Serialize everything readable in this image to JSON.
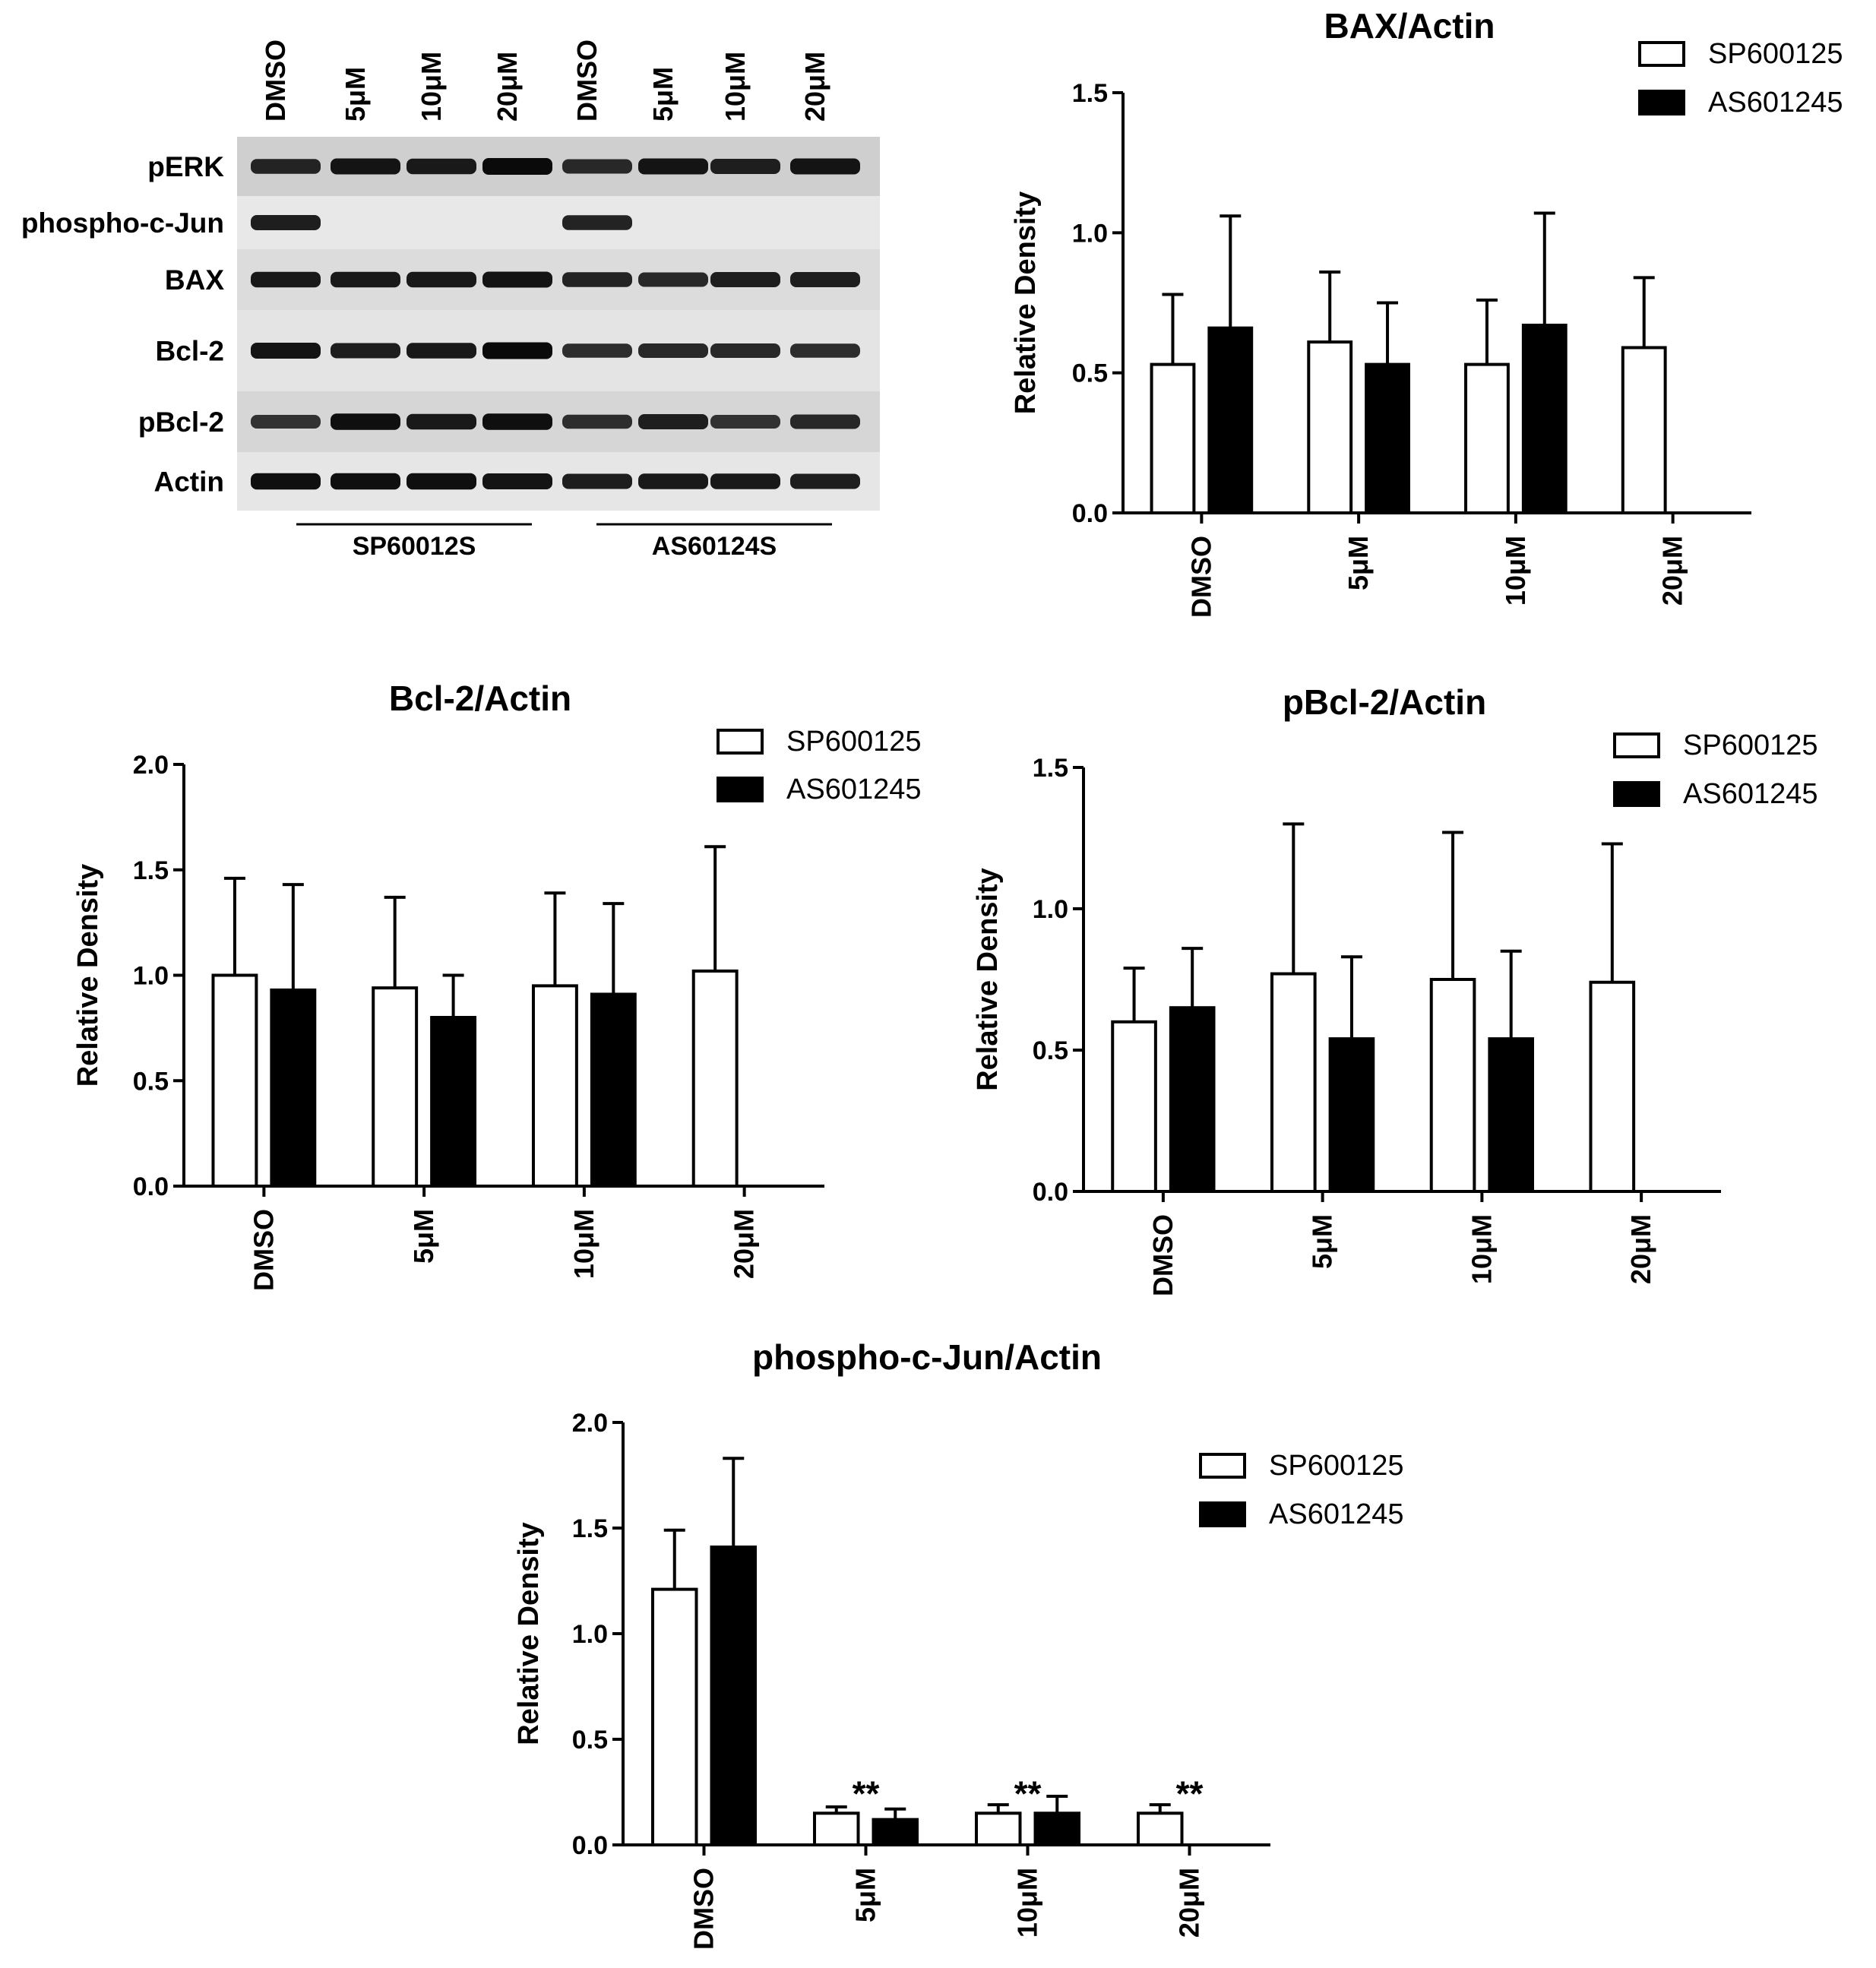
{
  "blot": {
    "lane_labels": [
      "DMSO",
      "5μM",
      "10μM",
      "20μM",
      "DMSO",
      "5μM",
      "10μM",
      "20μM"
    ],
    "row_labels": [
      "pERK",
      "phospho-c-Jun",
      "BAX",
      "Bcl-2",
      "pBcl-2",
      "Actin"
    ],
    "group_labels": [
      "SP60012S",
      "AS60124S"
    ],
    "band_intensity": [
      [
        0.75,
        0.9,
        0.85,
        1.0,
        0.7,
        0.9,
        0.8,
        0.9
      ],
      [
        0.8,
        0,
        0,
        0,
        0.75,
        0,
        0,
        0
      ],
      [
        0.85,
        0.85,
        0.85,
        0.9,
        0.75,
        0.7,
        0.8,
        0.8
      ],
      [
        0.9,
        0.8,
        0.85,
        1.0,
        0.65,
        0.7,
        0.7,
        0.65
      ],
      [
        0.6,
        0.95,
        0.85,
        0.95,
        0.65,
        0.8,
        0.6,
        0.7
      ],
      [
        0.95,
        0.95,
        0.95,
        0.9,
        0.8,
        0.85,
        0.85,
        0.8
      ]
    ]
  },
  "chart_data": [
    {
      "type": "bar",
      "title": "BAX/Actin",
      "ylabel": "Relative Density",
      "xlabel": "",
      "categories": [
        "DMSO",
        "5μM",
        "10μM",
        "20μM"
      ],
      "ylim": [
        0,
        1.5
      ],
      "yticks": [
        "0.0",
        "0.5",
        "1.0",
        "1.5"
      ],
      "legend": "top-right",
      "series": [
        {
          "name": "SP600125",
          "fill": "white",
          "values": [
            0.53,
            0.61,
            0.53,
            0.59
          ],
          "error": [
            0.25,
            0.25,
            0.23,
            0.25
          ]
        },
        {
          "name": "AS601245",
          "fill": "black",
          "values": [
            0.66,
            0.53,
            0.67,
            null
          ],
          "error": [
            0.4,
            0.22,
            0.4,
            null
          ]
        }
      ],
      "annotations": []
    },
    {
      "type": "bar",
      "title": "Bcl-2/Actin",
      "ylabel": "Relative Density",
      "xlabel": "",
      "categories": [
        "DMSO",
        "5μM",
        "10μM",
        "20μM"
      ],
      "ylim": [
        0,
        2.0
      ],
      "yticks": [
        "0.0",
        "0.5",
        "1.0",
        "1.5",
        "2.0"
      ],
      "legend": "top-right",
      "series": [
        {
          "name": "SP600125",
          "fill": "white",
          "values": [
            1.0,
            0.94,
            0.95,
            1.02
          ],
          "error": [
            0.46,
            0.43,
            0.44,
            0.59
          ]
        },
        {
          "name": "AS601245",
          "fill": "black",
          "values": [
            0.93,
            0.8,
            0.91,
            null
          ],
          "error": [
            0.5,
            0.2,
            0.43,
            null
          ]
        }
      ],
      "annotations": []
    },
    {
      "type": "bar",
      "title": "pBcl-2/Actin",
      "ylabel": "Relative Density",
      "xlabel": "",
      "categories": [
        "DMSO",
        "5μM",
        "10μM",
        "20μM"
      ],
      "ylim": [
        0,
        1.5
      ],
      "yticks": [
        "0.0",
        "0.5",
        "1.0",
        "1.5"
      ],
      "legend": "top-right",
      "series": [
        {
          "name": "SP600125",
          "fill": "white",
          "values": [
            0.6,
            0.77,
            0.75,
            0.74
          ],
          "error": [
            0.19,
            0.53,
            0.52,
            0.49
          ]
        },
        {
          "name": "AS601245",
          "fill": "black",
          "values": [
            0.65,
            0.54,
            0.54,
            null
          ],
          "error": [
            0.21,
            0.29,
            0.31,
            null
          ]
        }
      ],
      "annotations": []
    },
    {
      "type": "bar",
      "title": "phospho-c-Jun/Actin",
      "ylabel": "Relative Density",
      "xlabel": "",
      "categories": [
        "DMSO",
        "5μM",
        "10μM",
        "20μM"
      ],
      "ylim": [
        0,
        2.0
      ],
      "yticks": [
        "0.0",
        "0.5",
        "1.0",
        "1.5",
        "2.0"
      ],
      "legend": "top-right",
      "series": [
        {
          "name": "SP600125",
          "fill": "white",
          "values": [
            1.21,
            0.15,
            0.15,
            0.15
          ],
          "error": [
            0.28,
            0.03,
            0.04,
            0.04
          ]
        },
        {
          "name": "AS601245",
          "fill": "black",
          "values": [
            1.41,
            0.12,
            0.15,
            null
          ],
          "error": [
            0.42,
            0.05,
            0.08,
            null
          ]
        }
      ],
      "annotations": [
        {
          "category": "5μM",
          "text": "**"
        },
        {
          "category": "10μM",
          "text": "**"
        },
        {
          "category": "20μM",
          "text": "**"
        }
      ]
    }
  ]
}
